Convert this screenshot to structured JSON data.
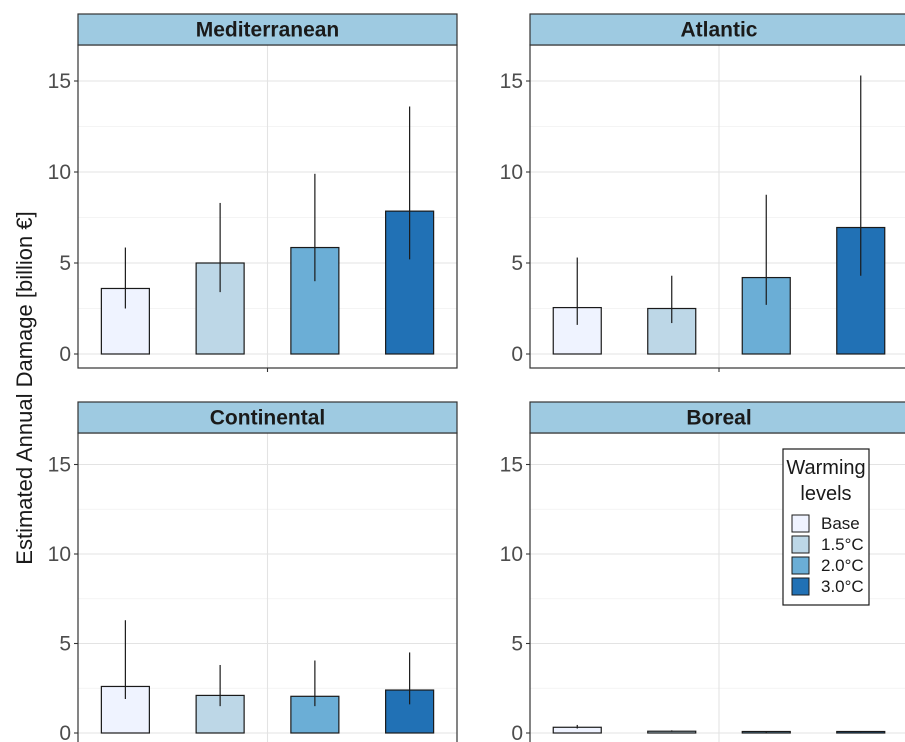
{
  "chart_data": {
    "type": "bar",
    "ylabel": "Estimated Annual Damage [billion €]",
    "ylim": [
      0,
      17
    ],
    "yticks": [
      0,
      5,
      10,
      15
    ],
    "grid": true,
    "facet_layout": "2x2",
    "legend": {
      "title_lines": [
        "Warming",
        "levels"
      ],
      "placement": "inside-right of Boreal panel",
      "items": [
        {
          "label": "Base",
          "color": "#eff3ff"
        },
        {
          "label": "1.5°C",
          "color": "#bdd7e7"
        },
        {
          "label": "2.0°C",
          "color": "#6baed6"
        },
        {
          "label": "3.0°C",
          "color": "#2171b5"
        }
      ]
    },
    "strip_color": "#9ecae1",
    "panels": [
      {
        "title": "Mediterranean",
        "values": [
          3.6,
          5.0,
          5.85,
          7.85
        ],
        "error_low": [
          2.5,
          3.4,
          4.0,
          5.2
        ],
        "error_high": [
          5.85,
          8.3,
          9.9,
          13.6
        ]
      },
      {
        "title": "Atlantic",
        "values": [
          2.55,
          2.5,
          4.2,
          6.95
        ],
        "error_low": [
          1.6,
          1.7,
          2.7,
          4.3
        ],
        "error_high": [
          5.3,
          4.3,
          8.75,
          15.3
        ]
      },
      {
        "title": "Continental",
        "values": [
          2.6,
          2.1,
          2.05,
          2.4
        ],
        "error_low": [
          1.9,
          1.5,
          1.5,
          1.6
        ],
        "error_high": [
          6.3,
          3.8,
          4.05,
          4.5
        ]
      },
      {
        "title": "Boreal",
        "values": [
          0.32,
          0.1,
          0.05,
          0.07
        ],
        "error_low": [
          0.25,
          0.07,
          0.03,
          0.05
        ],
        "error_high": [
          0.45,
          0.15,
          0.08,
          0.1
        ]
      }
    ]
  }
}
